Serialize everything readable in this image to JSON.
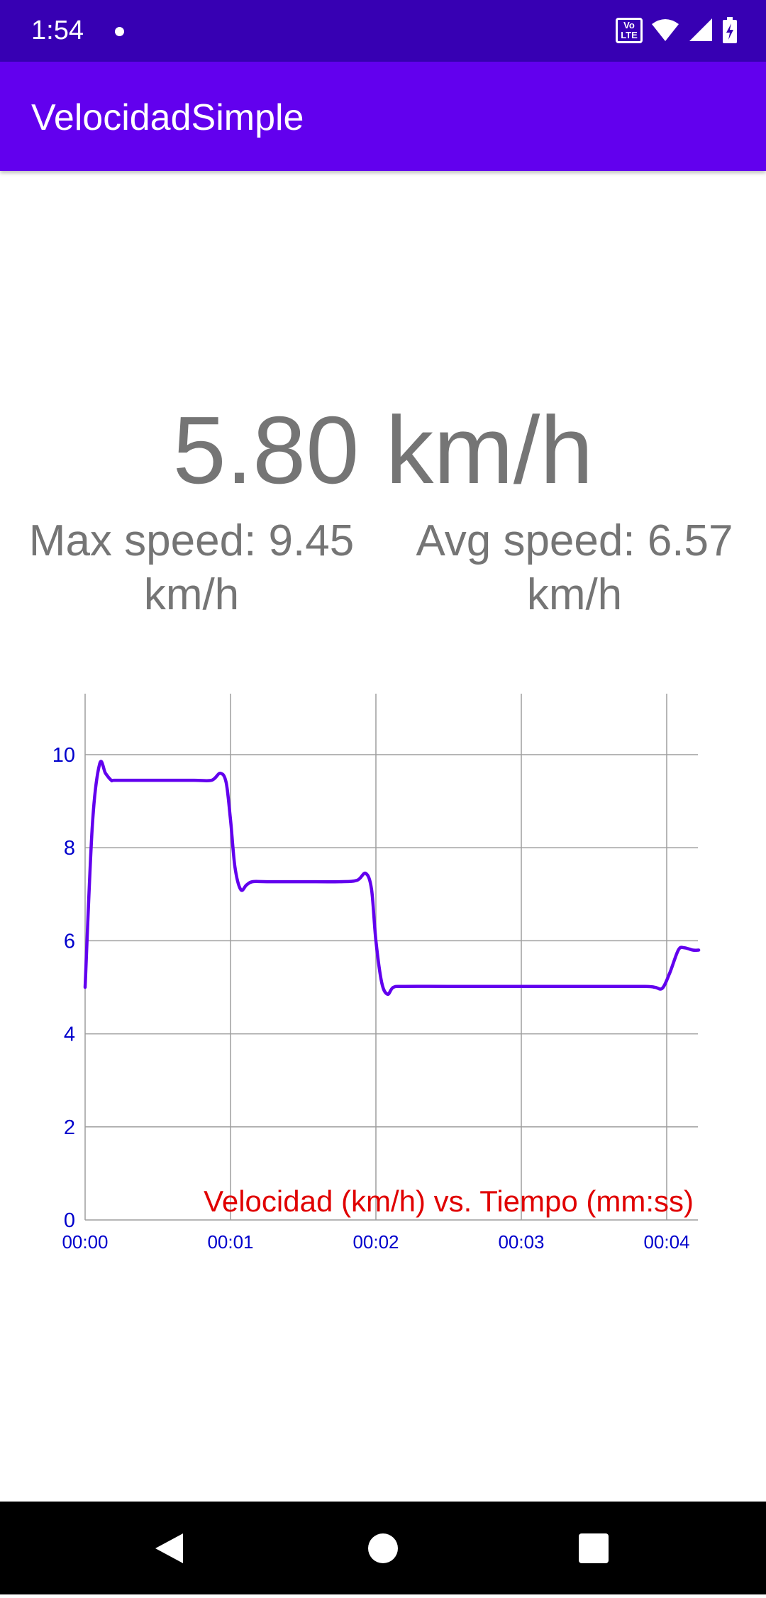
{
  "status_bar": {
    "time": "1:54",
    "volte_top": "Vo",
    "volte_bottom": "LTE",
    "icons": [
      "notification-dot-icon",
      "volte-icon",
      "wifi-icon",
      "signal-icon",
      "battery-icon"
    ]
  },
  "app_bar": {
    "title": "VelocidadSimple",
    "color": "#6200ee",
    "status_color": "#3700b3"
  },
  "speed": {
    "current": "5.80 km/h",
    "max_line1": "Max speed: 9.45",
    "max_line2": "km/h",
    "avg_line1": "Avg speed: 6.57",
    "avg_line2": "km/h"
  },
  "chart_data": {
    "type": "line",
    "title": "Velocidad (km/h) vs. Tiempo (mm:ss)",
    "xlabel": "",
    "ylabel": "",
    "x_ticks": [
      "00:00",
      "00:01",
      "00:02",
      "00:03",
      "00:04"
    ],
    "y_ticks": [
      "0",
      "2",
      "4",
      "6",
      "8",
      "10"
    ],
    "ylim": [
      0,
      11.3
    ],
    "xlim": [
      0,
      4.22
    ],
    "grid": true,
    "line_color": "#6200ee",
    "axis_color": "#0000cc",
    "title_color": "#e00000",
    "series": [
      {
        "x": [
          0.0,
          0.05,
          0.1,
          0.14,
          0.18,
          0.2,
          0.35,
          0.5,
          0.75,
          0.87,
          0.93,
          0.97,
          1.0,
          1.03,
          1.07,
          1.11,
          1.15,
          1.25,
          1.5,
          1.75,
          1.87,
          1.93,
          1.97,
          2.0,
          2.04,
          2.08,
          2.12,
          2.2,
          2.5,
          3.0,
          3.5,
          3.85,
          3.92,
          3.97,
          4.02,
          4.08,
          4.12,
          4.18,
          4.22
        ],
        "y": [
          5.0,
          8.5,
          9.8,
          9.6,
          9.45,
          9.45,
          9.45,
          9.45,
          9.45,
          9.45,
          9.6,
          9.4,
          8.6,
          7.6,
          7.1,
          7.2,
          7.27,
          7.27,
          7.27,
          7.27,
          7.3,
          7.45,
          7.1,
          6.0,
          5.1,
          4.85,
          5.0,
          5.02,
          5.02,
          5.02,
          5.02,
          5.02,
          5.0,
          4.98,
          5.3,
          5.8,
          5.85,
          5.8,
          5.8
        ]
      }
    ]
  }
}
